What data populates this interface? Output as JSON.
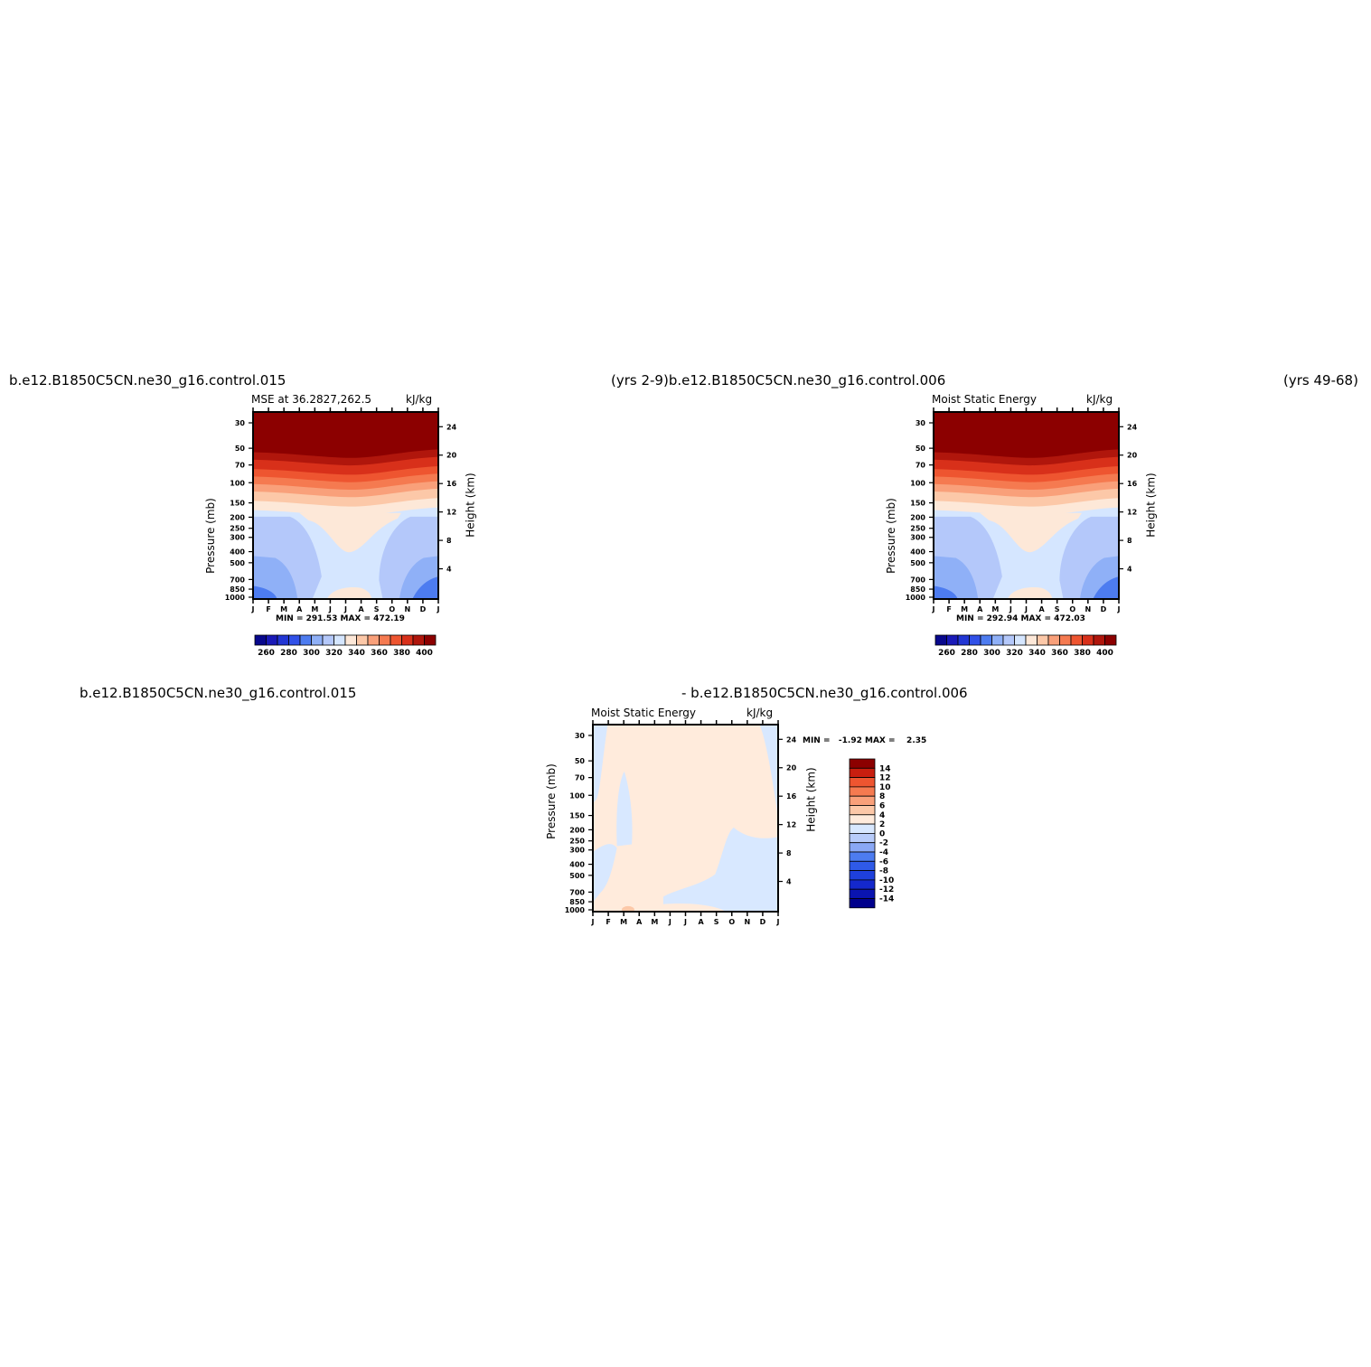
{
  "headers": {
    "top_left": "b.e12.B1850C5CN.ne30_g16.control.015",
    "top_mid": "(yrs 2-9)b.e12.B1850C5CN.ne30_g16.control.006",
    "top_right": "(yrs 49-68)",
    "bottom_left": "b.e12.B1850C5CN.ne30_g16.control.015",
    "bottom_mid": "- b.e12.B1850C5CN.ne30_g16.control.006"
  },
  "months": [
    "J",
    "F",
    "M",
    "A",
    "M",
    "J",
    "J",
    "A",
    "S",
    "O",
    "N",
    "D",
    "J"
  ],
  "pressure_ticks": [
    "30",
    "50",
    "70",
    "100",
    "150",
    "200",
    "250",
    "300",
    "400",
    "500",
    "700",
    "850",
    "1000"
  ],
  "height_ticks": [
    "24",
    "20",
    "16",
    "12",
    "8",
    "4"
  ],
  "colors": {
    "abs_levels": [
      "#08088c",
      "#1a1ab8",
      "#2236d4",
      "#3050e8",
      "#4d7cf0",
      "#8fb0f7",
      "#b4c8fa",
      "#d5e6ff",
      "#fde8d8",
      "#fcc8a8",
      "#f9a07a",
      "#f57a50",
      "#ee5530",
      "#d8301a",
      "#b0160c",
      "#8c0000"
    ],
    "diff_levels": [
      "#00008c",
      "#0a14b0",
      "#1428cc",
      "#1e40dc",
      "#2f5ae8",
      "#4d7cf0",
      "#8aa8f5",
      "#b8ccfa",
      "#d8e8ff",
      "#ffebdc",
      "#fcc8a8",
      "#f9a07a",
      "#f57a50",
      "#ee5530",
      "#c81e0f",
      "#8c0000"
    ]
  },
  "chart_data": [
    {
      "type": "heatmap",
      "title": "MSE at 36.2827,262.5",
      "units": "kJ/kg",
      "xlabel": "",
      "ylabel": "Pressure (mb)",
      "ylabel_right": "Height (km)",
      "x": [
        "J",
        "F",
        "M",
        "A",
        "M",
        "J",
        "J",
        "A",
        "S",
        "O",
        "N",
        "D",
        "J"
      ],
      "y_pressure_mb": [
        30,
        50,
        70,
        100,
        150,
        200,
        250,
        300,
        400,
        500,
        700,
        850,
        1000
      ],
      "min_label": "MIN = 291.53 MAX = 472.19",
      "min": 291.53,
      "max": 472.19,
      "colorbar_ticks": [
        "260",
        "280",
        "300",
        "320",
        "340",
        "360",
        "380",
        "400"
      ],
      "colorbar_range": [
        250,
        410
      ]
    },
    {
      "type": "heatmap",
      "title": "Moist Static Energy",
      "units": "kJ/kg",
      "xlabel": "",
      "ylabel": "Pressure (mb)",
      "ylabel_right": "Height (km)",
      "x": [
        "J",
        "F",
        "M",
        "A",
        "M",
        "J",
        "J",
        "A",
        "S",
        "O",
        "N",
        "D",
        "J"
      ],
      "y_pressure_mb": [
        30,
        50,
        70,
        100,
        150,
        200,
        250,
        300,
        400,
        500,
        700,
        850,
        1000
      ],
      "min_label": "MIN = 292.94 MAX = 472.03",
      "min": 292.94,
      "max": 472.03,
      "colorbar_ticks": [
        "260",
        "280",
        "300",
        "320",
        "340",
        "360",
        "380",
        "400"
      ],
      "colorbar_range": [
        250,
        410
      ]
    },
    {
      "type": "heatmap",
      "title": "Moist Static Energy",
      "units": "kJ/kg",
      "xlabel": "",
      "ylabel": "Pressure (mb)",
      "ylabel_right": "Height (km)",
      "x": [
        "J",
        "F",
        "M",
        "A",
        "M",
        "J",
        "J",
        "A",
        "S",
        "O",
        "N",
        "D",
        "J"
      ],
      "y_pressure_mb": [
        30,
        50,
        70,
        100,
        150,
        200,
        250,
        300,
        400,
        500,
        700,
        850,
        1000
      ],
      "min_label": "MIN =   -1.92 MAX =    2.35",
      "min": -1.92,
      "max": 2.35,
      "colorbar_ticks": [
        "14",
        "12",
        "10",
        "8",
        "6",
        "4",
        "2",
        "0",
        "-2",
        "-4",
        "-6",
        "-8",
        "-10",
        "-12",
        "-14"
      ],
      "colorbar_range": [
        -16,
        16
      ]
    }
  ]
}
